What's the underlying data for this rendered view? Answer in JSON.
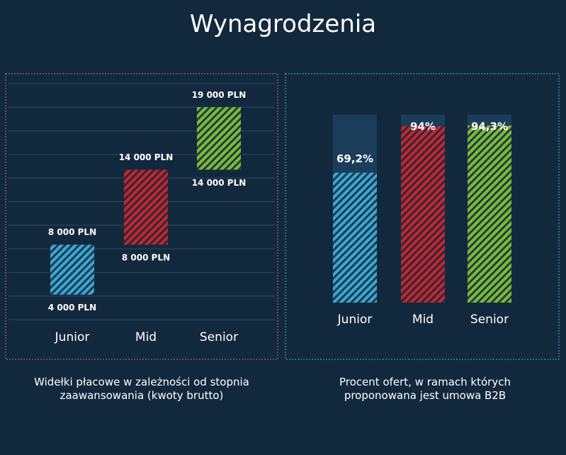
{
  "title": "Wynagrodzenia",
  "chart_data": [
    {
      "type": "range_bar",
      "caption": "Widełki płacowe w zależności od stopnia zaawansowania (kwoty brutto)",
      "categories": [
        "Junior",
        "Mid",
        "Senior"
      ],
      "low": [
        4000,
        8000,
        14000
      ],
      "high": [
        8000,
        14000,
        19000
      ],
      "low_labels": [
        "4 000 PLN",
        "8 000 PLN",
        "14 000 PLN"
      ],
      "high_labels": [
        "8 000 PLN",
        "14 000 PLN",
        "19 000 PLN"
      ],
      "colors": [
        "#3ea6cf",
        "#c5252c",
        "#7dbb3a"
      ],
      "ylim": [
        2000,
        21000
      ]
    },
    {
      "type": "bar",
      "caption": "Procent ofert, w ramach których proponowana jest umowa B2B",
      "categories": [
        "Junior",
        "Mid",
        "Senior"
      ],
      "values": [
        69.2,
        94,
        94.3
      ],
      "value_labels": [
        "69,2%",
        "94%",
        "94,3%"
      ],
      "colors": [
        "#3ea6cf",
        "#c5252c",
        "#7dbb3a"
      ],
      "ylim": [
        0,
        100
      ]
    }
  ]
}
